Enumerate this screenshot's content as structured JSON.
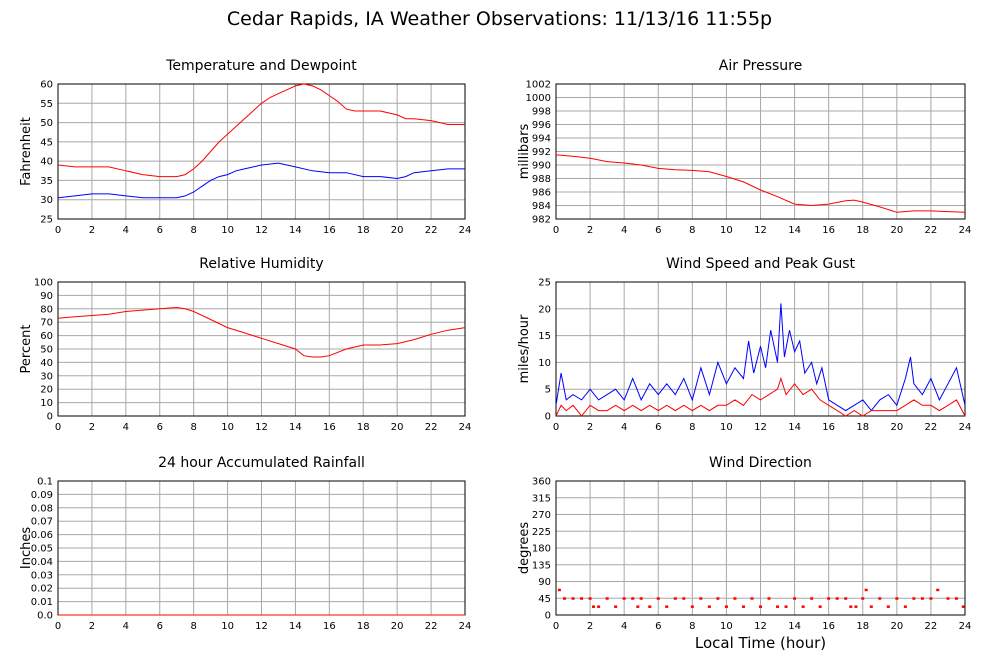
{
  "page": {
    "title": "Cedar Rapids, IA Weather Observations: 11/13/16 11:55p",
    "xlabel": "Local Time (hour)"
  },
  "colors": {
    "red": "#ff0000",
    "blue": "#0000ff",
    "grid": "#a8a8a8"
  },
  "chart_data": [
    {
      "id": "temp",
      "type": "line",
      "title": "Temperature and Dewpoint",
      "ylabel": "Fahrenheit",
      "xlim": [
        0,
        24
      ],
      "ylim": [
        25,
        60
      ],
      "xticks": [
        0,
        2,
        4,
        6,
        8,
        10,
        12,
        14,
        16,
        18,
        20,
        22,
        24
      ],
      "yticks": [
        25,
        30,
        35,
        40,
        45,
        50,
        55,
        60
      ],
      "grid": true,
      "series": [
        {
          "color": "#ff0000",
          "x": [
            0,
            1,
            2,
            3,
            4,
            5,
            6,
            7,
            7.5,
            8,
            8.5,
            9,
            9.5,
            10,
            10.5,
            11,
            11.5,
            12,
            12.5,
            13,
            13.5,
            14,
            14.5,
            15,
            15.5,
            16,
            16.5,
            17,
            17.5,
            18,
            19,
            20,
            20.5,
            21,
            22,
            23,
            24
          ],
          "y": [
            39,
            38.5,
            38.5,
            38.5,
            37.5,
            36.5,
            36,
            36,
            36.5,
            38,
            40,
            42.5,
            45,
            47,
            49,
            51,
            53,
            55,
            56.5,
            57.5,
            58.5,
            59.5,
            60,
            59.5,
            58.5,
            57,
            55.5,
            53.5,
            53,
            53,
            53,
            52,
            51,
            51,
            50.5,
            49.5,
            49.5
          ]
        },
        {
          "color": "#0000ff",
          "x": [
            0,
            1,
            2,
            3,
            4,
            5,
            6,
            7,
            7.5,
            8,
            8.5,
            9,
            9.5,
            10,
            10.5,
            11,
            12,
            13,
            13.5,
            14,
            15,
            16,
            17,
            18,
            19,
            20,
            20.5,
            21,
            22,
            23,
            24
          ],
          "y": [
            30.5,
            31,
            31.5,
            31.5,
            31,
            30.5,
            30.5,
            30.5,
            31,
            32,
            33.5,
            35,
            36,
            36.5,
            37.5,
            38,
            39,
            39.5,
            39,
            38.5,
            37.5,
            37,
            37,
            36,
            36,
            35.5,
            36,
            37,
            37.5,
            38,
            38
          ]
        }
      ]
    },
    {
      "id": "pres",
      "type": "line",
      "title": "Air Pressure",
      "ylabel": "millibars",
      "xlim": [
        0,
        24
      ],
      "ylim": [
        982,
        1002
      ],
      "xticks": [
        0,
        2,
        4,
        6,
        8,
        10,
        12,
        14,
        16,
        18,
        20,
        22,
        24
      ],
      "yticks": [
        982,
        984,
        986,
        988,
        990,
        992,
        994,
        996,
        998,
        1000,
        1002
      ],
      "grid": true,
      "series": [
        {
          "color": "#ff0000",
          "x": [
            0,
            1,
            2,
            3,
            4,
            5,
            6,
            7,
            8,
            9,
            10,
            11,
            12,
            13,
            14,
            15,
            16,
            17,
            17.5,
            18,
            19,
            20,
            21,
            22,
            23,
            24
          ],
          "y": [
            991.5,
            991.3,
            991,
            990.5,
            990.3,
            990,
            989.5,
            989.3,
            989.2,
            989,
            988.3,
            987.5,
            986.3,
            985.3,
            984.2,
            984,
            984.2,
            984.7,
            984.8,
            984.5,
            983.8,
            983,
            983.2,
            983.2,
            983.1,
            983
          ]
        }
      ]
    },
    {
      "id": "rh",
      "type": "line",
      "title": "Relative Humidity",
      "ylabel": "Percent",
      "xlim": [
        0,
        24
      ],
      "ylim": [
        0,
        100
      ],
      "xticks": [
        0,
        2,
        4,
        6,
        8,
        10,
        12,
        14,
        16,
        18,
        20,
        22,
        24
      ],
      "yticks": [
        0,
        10,
        20,
        30,
        40,
        50,
        60,
        70,
        80,
        90,
        100
      ],
      "grid": true,
      "series": [
        {
          "color": "#ff0000",
          "x": [
            0,
            1,
            2,
            3,
            4,
            5,
            6,
            7,
            7.5,
            8,
            9,
            10,
            11,
            12,
            13,
            14,
            14.5,
            15,
            15.5,
            16,
            17,
            18,
            19,
            20,
            21,
            22,
            23,
            24
          ],
          "y": [
            73,
            74,
            75,
            76,
            78,
            79,
            80,
            81,
            80,
            78,
            72,
            66,
            62,
            58,
            54,
            50,
            45,
            44,
            44,
            45,
            50,
            53,
            53,
            54,
            57,
            61,
            64,
            66
          ]
        }
      ]
    },
    {
      "id": "wind",
      "type": "line",
      "title": "Wind Speed and Peak Gust",
      "ylabel": "miles/hour",
      "xlim": [
        0,
        24
      ],
      "ylim": [
        0,
        25
      ],
      "xticks": [
        0,
        2,
        4,
        6,
        8,
        10,
        12,
        14,
        16,
        18,
        20,
        22,
        24
      ],
      "yticks": [
        0,
        5,
        10,
        15,
        20,
        25
      ],
      "grid": true,
      "series": [
        {
          "color": "#0000ff",
          "x": [
            0,
            0.3,
            0.6,
            1,
            1.5,
            2,
            2.5,
            3,
            3.5,
            4,
            4.5,
            5,
            5.5,
            6,
            6.5,
            7,
            7.5,
            8,
            8.5,
            9,
            9.5,
            10,
            10.5,
            11,
            11.3,
            11.6,
            12,
            12.3,
            12.6,
            13,
            13.2,
            13.4,
            13.7,
            14,
            14.3,
            14.6,
            15,
            15.3,
            15.6,
            16,
            16.5,
            17,
            17.5,
            18,
            18.5,
            19,
            19.5,
            20,
            20.5,
            20.8,
            21,
            21.5,
            22,
            22.5,
            23,
            23.5,
            24
          ],
          "y": [
            2,
            8,
            3,
            4,
            3,
            5,
            3,
            4,
            5,
            3,
            7,
            3,
            6,
            4,
            6,
            4,
            7,
            3,
            9,
            4,
            10,
            6,
            9,
            7,
            14,
            8,
            13,
            9,
            16,
            10,
            21,
            11,
            16,
            12,
            14,
            8,
            10,
            6,
            9,
            3,
            2,
            1,
            2,
            3,
            1,
            3,
            4,
            2,
            7,
            11,
            6,
            4,
            7,
            3,
            6,
            9,
            2
          ]
        },
        {
          "color": "#ff0000",
          "x": [
            0,
            0.3,
            0.6,
            1,
            1.5,
            2,
            2.5,
            3,
            3.5,
            4,
            4.5,
            5,
            5.5,
            6,
            6.5,
            7,
            7.5,
            8,
            8.5,
            9,
            9.5,
            10,
            10.5,
            11,
            11.5,
            12,
            12.5,
            13,
            13.2,
            13.5,
            14,
            14.5,
            15,
            15.5,
            16,
            16.5,
            17,
            17.5,
            18,
            18.5,
            19,
            19.5,
            20,
            20.5,
            21,
            21.5,
            22,
            22.5,
            23,
            23.5,
            24
          ],
          "y": [
            0,
            2,
            1,
            2,
            0,
            2,
            1,
            1,
            2,
            1,
            2,
            1,
            2,
            1,
            2,
            1,
            2,
            1,
            2,
            1,
            2,
            2,
            3,
            2,
            4,
            3,
            4,
            5,
            7,
            4,
            6,
            4,
            5,
            3,
            2,
            1,
            0,
            1,
            0,
            1,
            1,
            1,
            1,
            2,
            3,
            2,
            2,
            1,
            2,
            3,
            0
          ]
        }
      ]
    },
    {
      "id": "rain",
      "type": "line",
      "title": "24 hour Accumulated Rainfall",
      "ylabel": "Inches",
      "xlim": [
        0,
        24
      ],
      "ylim": [
        0,
        0.1
      ],
      "xticks": [
        0,
        2,
        4,
        6,
        8,
        10,
        12,
        14,
        16,
        18,
        20,
        22,
        24
      ],
      "yticks": [
        "0.0",
        "0.01",
        "0.02",
        "0.03",
        "0.04",
        "0.05",
        "0.06",
        "0.07",
        "0.08",
        "0.09",
        "0.1"
      ],
      "grid": true,
      "series": [
        {
          "color": "#ff0000",
          "x": [
            0,
            24
          ],
          "y": [
            0,
            0
          ]
        }
      ]
    },
    {
      "id": "wdir",
      "type": "scatter",
      "title": "Wind Direction",
      "ylabel": "degrees",
      "xlim": [
        0,
        24
      ],
      "ylim": [
        0,
        360
      ],
      "xticks": [
        0,
        2,
        4,
        6,
        8,
        10,
        12,
        14,
        16,
        18,
        20,
        22,
        24
      ],
      "yticks": [
        0,
        45,
        90,
        135,
        180,
        225,
        270,
        315,
        360
      ],
      "grid": true,
      "series": [
        {
          "color": "#ff0000",
          "x": [
            0.2,
            0.5,
            1,
            1.5,
            2,
            2.2,
            2.5,
            3,
            3.5,
            4,
            4.5,
            4.8,
            5,
            5.5,
            6,
            6.5,
            7,
            7.5,
            8,
            8.5,
            9,
            9.5,
            10,
            10.5,
            11,
            11.5,
            12,
            12.5,
            13,
            13.5,
            14,
            14.5,
            15,
            15.5,
            16,
            16.5,
            17,
            17.3,
            17.6,
            18,
            18.2,
            18.5,
            19,
            19.5,
            20,
            20.5,
            21,
            21.5,
            22,
            22.4,
            23,
            23.5,
            23.9
          ],
          "y": [
            68,
            45,
            45,
            45,
            45,
            23,
            23,
            45,
            23,
            45,
            45,
            23,
            45,
            23,
            45,
            23,
            45,
            45,
            23,
            45,
            23,
            45,
            23,
            45,
            23,
            45,
            23,
            45,
            23,
            23,
            45,
            23,
            45,
            23,
            45,
            45,
            45,
            23,
            23,
            45,
            68,
            23,
            45,
            23,
            45,
            23,
            45,
            45,
            45,
            68,
            45,
            45,
            23
          ]
        }
      ]
    }
  ]
}
